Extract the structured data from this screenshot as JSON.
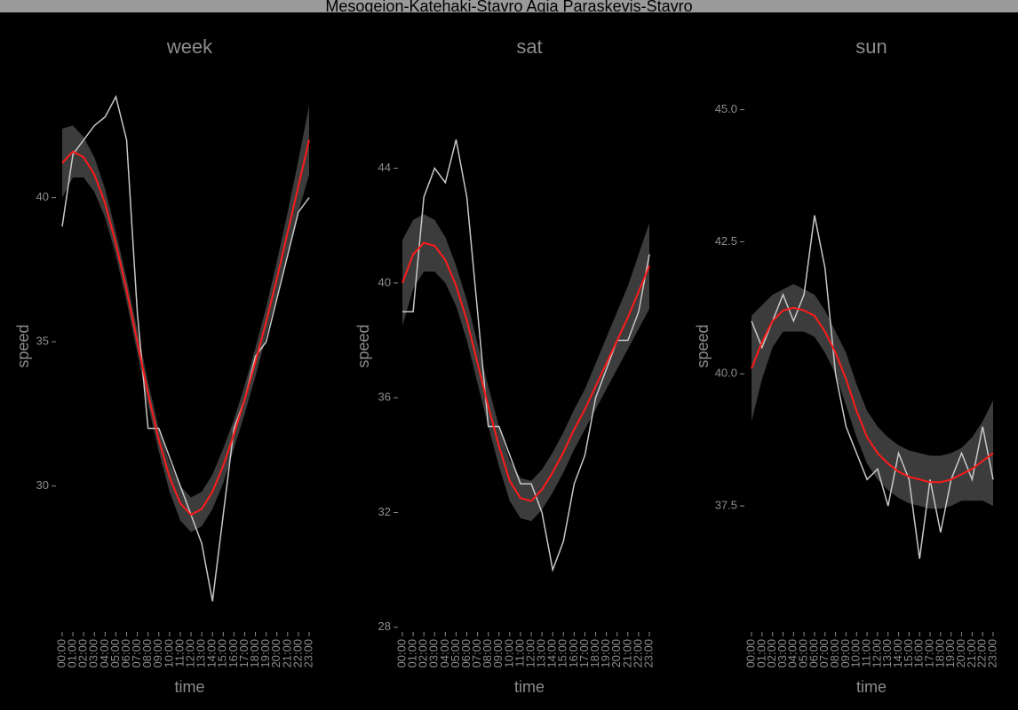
{
  "title": "Mesogeion-Katehaki-Stavro Agia Paraskevis-Stavro",
  "chart_data": [
    {
      "type": "line",
      "title": "week",
      "x_label": "time",
      "y_label": "speed",
      "categories": [
        "00:00",
        "01:00",
        "02:00",
        "03:00",
        "04:00",
        "05:00",
        "06:00",
        "07:00",
        "08:00",
        "09:00",
        "10:00",
        "11:00",
        "12:00",
        "13:00",
        "14:00",
        "15:00",
        "16:00",
        "17:00",
        "18:00",
        "19:00",
        "20:00",
        "21:00",
        "22:00",
        "23:00"
      ],
      "ylim": [
        25,
        44.7
      ],
      "yticks": [
        30,
        35,
        40
      ],
      "series": [
        {
          "color": "#c8c8c8",
          "values": [
            39,
            41.5,
            42,
            42.5,
            42.8,
            43.5,
            42,
            36,
            32,
            32,
            31,
            30,
            29,
            28,
            26,
            29,
            32,
            33,
            34.5,
            35,
            36.5,
            38,
            39.5,
            40
          ]
        },
        {
          "color": "#ff1a1a",
          "values": [
            41.2,
            41.6,
            41.4,
            40.8,
            39.8,
            38.4,
            36.8,
            35,
            33.2,
            31.6,
            30.3,
            29.4,
            29,
            29.2,
            29.8,
            30.7,
            31.8,
            33,
            34.3,
            35.7,
            37.2,
            38.8,
            40.4,
            42
          ],
          "band": {
            "color": "#3c3c3c",
            "lower": [
              40,
              40.7,
              40.7,
              40.2,
              39.3,
              38,
              36.4,
              34.6,
              32.8,
              31.2,
              29.8,
              28.8,
              28.4,
              28.6,
              29.2,
              30.1,
              31.3,
              32.5,
              33.8,
              35.2,
              36.6,
              38.1,
              39.5,
              40.8
            ],
            "upper": [
              42.4,
              42.5,
              42.1,
              41.4,
              40.3,
              38.8,
              37.2,
              35.4,
              33.6,
              32,
              30.8,
              30,
              29.6,
              29.8,
              30.4,
              31.3,
              32.3,
              33.5,
              34.8,
              36.2,
              37.8,
              39.5,
              41.3,
              43.2
            ]
          }
        }
      ]
    },
    {
      "type": "line",
      "title": "sat",
      "x_label": "time",
      "y_label": "speed",
      "categories": [
        "00:00",
        "01:00",
        "02:00",
        "03:00",
        "04:00",
        "05:00",
        "06:00",
        "07:00",
        "08:00",
        "09:00",
        "10:00",
        "11:00",
        "12:00",
        "13:00",
        "14:00",
        "15:00",
        "16:00",
        "17:00",
        "18:00",
        "19:00",
        "20:00",
        "21:00",
        "22:00",
        "23:00"
      ],
      "ylim": [
        27.9,
        47.7
      ],
      "yticks": [
        28,
        32,
        36,
        40,
        44
      ],
      "series": [
        {
          "color": "#c8c8c8",
          "values": [
            39,
            39,
            43,
            44,
            43.5,
            45,
            43,
            39,
            35,
            35,
            34,
            33,
            33,
            32,
            30,
            31,
            33,
            34,
            36,
            37,
            38,
            38,
            39,
            41
          ]
        },
        {
          "color": "#ff1a1a",
          "values": [
            40,
            41,
            41.4,
            41.3,
            40.8,
            39.9,
            38.7,
            37.2,
            35.7,
            34.3,
            33.1,
            32.5,
            32.4,
            32.8,
            33.4,
            34.1,
            34.9,
            35.6,
            36.4,
            37.2,
            38,
            38.8,
            39.7,
            40.6
          ],
          "band": {
            "color": "#3c3c3c",
            "lower": [
              38.5,
              39.8,
              40.4,
              40.4,
              40,
              39.2,
              38,
              36.5,
              35,
              33.6,
              32.4,
              31.8,
              31.7,
              32.1,
              32.7,
              33.4,
              34.2,
              34.9,
              35.6,
              36.3,
              37,
              37.7,
              38.4,
              39.1
            ],
            "upper": [
              41.5,
              42.2,
              42.4,
              42.2,
              41.6,
              40.6,
              39.4,
              37.9,
              36.4,
              35,
              33.8,
              33.2,
              33.1,
              33.5,
              34.1,
              34.8,
              35.6,
              36.3,
              37.2,
              38.1,
              39,
              39.9,
              41,
              42.1
            ]
          }
        }
      ]
    },
    {
      "type": "line",
      "title": "sun",
      "x_label": "time",
      "y_label": "speed",
      "categories": [
        "00:00",
        "01:00",
        "02:00",
        "03:00",
        "04:00",
        "05:00",
        "06:00",
        "07:00",
        "08:00",
        "09:00",
        "10:00",
        "11:00",
        "12:00",
        "13:00",
        "14:00",
        "15:00",
        "16:00",
        "17:00",
        "18:00",
        "19:00",
        "20:00",
        "21:00",
        "22:00",
        "23:00"
      ],
      "ylim": [
        35.15,
        45.9
      ],
      "yticks": [
        {
          "value": 37.5,
          "label": "37.5"
        },
        {
          "value": 40,
          "label": "40.0"
        },
        {
          "value": 42.5,
          "label": "42.5"
        },
        {
          "value": 45,
          "label": "45.0"
        }
      ],
      "series": [
        {
          "color": "#c8c8c8",
          "values": [
            41,
            40.5,
            41,
            41.5,
            41,
            41.5,
            43,
            42,
            40,
            39,
            38.5,
            38,
            38.2,
            37.5,
            38.5,
            38,
            36.5,
            38,
            37,
            38,
            38.5,
            38,
            39,
            38
          ]
        },
        {
          "color": "#ff1a1a",
          "values": [
            40.1,
            40.6,
            41,
            41.2,
            41.25,
            41.2,
            41.1,
            40.8,
            40.4,
            39.9,
            39.3,
            38.8,
            38.5,
            38.3,
            38.15,
            38.05,
            38,
            37.95,
            37.95,
            38,
            38.1,
            38.2,
            38.35,
            38.5
          ],
          "band": {
            "color": "#3c3c3c",
            "lower": [
              39.1,
              39.9,
              40.5,
              40.8,
              40.8,
              40.8,
              40.7,
              40.4,
              40,
              39.4,
              38.8,
              38.3,
              38,
              37.8,
              37.65,
              37.55,
              37.5,
              37.45,
              37.45,
              37.5,
              37.6,
              37.6,
              37.6,
              37.5
            ],
            "upper": [
              41.1,
              41.3,
              41.5,
              41.6,
              41.7,
              41.6,
              41.5,
              41.2,
              40.8,
              40.4,
              39.8,
              39.3,
              39,
              38.8,
              38.65,
              38.55,
              38.5,
              38.45,
              38.45,
              38.5,
              38.6,
              38.8,
              39.1,
              39.5
            ]
          }
        }
      ]
    }
  ]
}
